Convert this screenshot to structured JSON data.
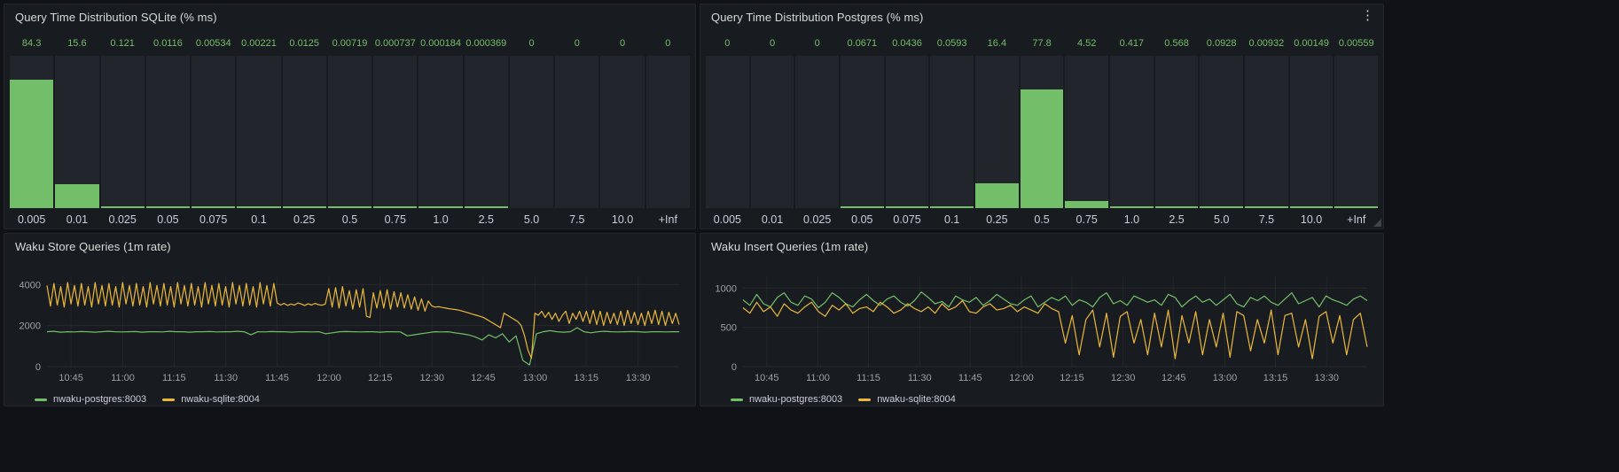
{
  "colors": {
    "green": "#73bf69",
    "yellow": "#eab839",
    "panel_bg": "#181b1f",
    "page_bg": "#111217"
  },
  "icons": {
    "panel_menu": "⋮"
  },
  "panels": {
    "hist_sqlite": {
      "title": "Query Time Distribution SQLite (% ms)",
      "chart": {
        "type": "bar",
        "categories": [
          "0.005",
          "0.01",
          "0.025",
          "0.05",
          "0.075",
          "0.1",
          "0.25",
          "0.5",
          "0.75",
          "1.0",
          "2.5",
          "5.0",
          "7.5",
          "10.0",
          "+Inf"
        ],
        "values": [
          84.3,
          15.6,
          0.121,
          0.0116,
          0.00534,
          0.00221,
          0.0125,
          0.00719,
          0.000737,
          0.000184,
          0.000369,
          0,
          0,
          0,
          0
        ],
        "value_labels": [
          "84.3",
          "15.6",
          "0.121",
          "0.0116",
          "0.00534",
          "0.00221",
          "0.0125",
          "0.00719",
          "0.000737",
          "0.000184",
          "0.000369",
          "0",
          "0",
          "0",
          "0"
        ],
        "ylim": [
          0,
          100
        ]
      }
    },
    "hist_postgres": {
      "title": "Query Time Distribution Postgres (% ms)",
      "chart": {
        "type": "bar",
        "categories": [
          "0.005",
          "0.01",
          "0.025",
          "0.05",
          "0.075",
          "0.1",
          "0.25",
          "0.5",
          "0.75",
          "1.0",
          "2.5",
          "5.0",
          "7.5",
          "10.0",
          "+Inf"
        ],
        "values": [
          0,
          0,
          0,
          0.0671,
          0.0436,
          0.0593,
          16.4,
          77.8,
          4.52,
          0.417,
          0.568,
          0.0928,
          0.00932,
          0.00149,
          0.00559
        ],
        "value_labels": [
          "0",
          "0",
          "0",
          "0.0671",
          "0.0436",
          "0.0593",
          "16.4",
          "77.8",
          "4.52",
          "0.417",
          "0.568",
          "0.0928",
          "0.00932",
          "0.00149",
          "0.00559"
        ],
        "ylim": [
          0,
          100
        ]
      }
    },
    "store": {
      "title": "Waku Store Queries (1m rate)",
      "chart": {
        "type": "line",
        "x_ticks": [
          {
            "label": "10:45",
            "pos": 0.038
          },
          {
            "label": "11:00",
            "pos": 0.12
          },
          {
            "label": "11:15",
            "pos": 0.201
          },
          {
            "label": "11:30",
            "pos": 0.283
          },
          {
            "label": "11:45",
            "pos": 0.364
          },
          {
            "label": "12:00",
            "pos": 0.446
          },
          {
            "label": "12:15",
            "pos": 0.527
          },
          {
            "label": "12:30",
            "pos": 0.609
          },
          {
            "label": "12:45",
            "pos": 0.69
          },
          {
            "label": "13:00",
            "pos": 0.772
          },
          {
            "label": "13:15",
            "pos": 0.853
          },
          {
            "label": "13:30",
            "pos": 0.935
          }
        ],
        "y_ticks": [
          0,
          2000,
          4000
        ],
        "ymax": 4400,
        "series": [
          {
            "name": "nwaku-postgres:8003",
            "color": "#73bf69",
            "values": [
              1700,
              1720,
              1680,
              1700,
              1690,
              1710,
              1700,
              1680,
              1700,
              1720,
              1700,
              1690,
              1700,
              1710,
              1680,
              1700,
              1700,
              1690,
              1720,
              1700,
              1700,
              1680,
              1700,
              1700,
              1710,
              1690,
              1700,
              1700,
              1720,
              1700,
              1550,
              1700,
              1690,
              1710,
              1700,
              1700,
              1680,
              1700,
              1700,
              1690,
              1700,
              1600,
              1650,
              1700,
              1710,
              1700,
              1690,
              1700,
              1700,
              1680,
              1700,
              1700,
              1690,
              1500,
              1550,
              1600,
              1650,
              1700,
              1690,
              1700,
              1650,
              1600,
              1550,
              1450,
              1300,
              1550,
              1400,
              1600,
              1200,
              1500,
              300,
              80,
              1600,
              1700,
              1750,
              1700,
              1680,
              1700,
              1900,
              1700,
              1650,
              1700,
              1720,
              1700,
              1690,
              1700,
              1710,
              1700,
              1680,
              1700,
              1700,
              1690,
              1700,
              1700
            ]
          },
          {
            "name": "nwaku-sqlite:8004",
            "color": "#eab839",
            "values": [
              3950,
              2950,
              4050,
              3000,
              3900,
              2900,
              4100,
              3050,
              3950,
              2950,
              4050,
              3000,
              3900,
              2900,
              4100,
              3050,
              3950,
              2950,
              4050,
              3000,
              3900,
              2900,
              4100,
              3050,
              3950,
              2950,
              4050,
              3000,
              3900,
              2900,
              4100,
              3050,
              3950,
              2950,
              4050,
              3000,
              3900,
              2900,
              4100,
              3050,
              3950,
              2950,
              4050,
              3000,
              3900,
              2900,
              4100,
              3050,
              3950,
              2950,
              4050,
              3000,
              3900,
              2900,
              4100,
              3050,
              3950,
              2950,
              4050,
              3000,
              3900,
              2900,
              4100,
              3050,
              3950,
              2950,
              4050,
              3100,
              3000,
              3080,
              2980,
              3050,
              3000,
              3100,
              3050,
              2980,
              3060,
              3000,
              3080,
              3020,
              2990,
              3050,
              3800,
              2900,
              3850,
              2850,
              3900,
              2950,
              3700,
              2800,
              3750,
              2900,
              3800,
              2450,
              2400,
              3600,
              2850,
              3700,
              2850,
              3750,
              2800,
              3650,
              2900,
              3600,
              2850,
              3500,
              2800,
              3400,
              2750,
              3300,
              2700,
              3200,
              2950,
              2900,
              2920,
              2880,
              2850,
              2820,
              2800,
              2780,
              2750,
              2700,
              2650,
              2600,
              2550,
              2500,
              2450,
              2400,
              2300,
              2200,
              2100,
              2000,
              1900,
              2600,
              2500,
              2400,
              2300,
              2200,
              2000,
              1500,
              800,
              400,
              2600,
              2500,
              2700,
              2400,
              2650,
              2300,
              2600,
              2200,
              2500,
              2700,
              2100,
              2600,
              2300,
              2700,
              2200,
              2700,
              2100,
              2750,
              2050,
              2700,
              2000,
              2650,
              2100,
              2600,
              2050,
              2700,
              2000,
              2750,
              2100,
              2650,
              2050,
              2600,
              2000,
              2700,
              2100,
              2750,
              2050,
              2700,
              2000,
              2650,
              2100,
              2600,
              2050
            ]
          }
        ]
      }
    },
    "insert": {
      "title": "Waku Insert Queries (1m rate)",
      "chart": {
        "type": "line",
        "x_ticks": [
          {
            "label": "10:45",
            "pos": 0.038
          },
          {
            "label": "11:00",
            "pos": 0.12
          },
          {
            "label": "11:15",
            "pos": 0.201
          },
          {
            "label": "11:30",
            "pos": 0.283
          },
          {
            "label": "11:45",
            "pos": 0.364
          },
          {
            "label": "12:00",
            "pos": 0.446
          },
          {
            "label": "12:15",
            "pos": 0.527
          },
          {
            "label": "12:30",
            "pos": 0.609
          },
          {
            "label": "12:45",
            "pos": 0.69
          },
          {
            "label": "13:00",
            "pos": 0.772
          },
          {
            "label": "13:15",
            "pos": 0.853
          },
          {
            "label": "13:30",
            "pos": 0.935
          }
        ],
        "y_ticks": [
          0,
          500,
          1000
        ],
        "ymax": 1150,
        "series": [
          {
            "name": "nwaku-postgres:8003",
            "color": "#73bf69",
            "values": [
              850,
              780,
              920,
              800,
              760,
              880,
              940,
              820,
              780,
              900,
              860,
              750,
              820,
              940,
              880,
              800,
              760,
              850,
              920,
              840,
              780,
              860,
              900,
              820,
              770,
              840,
              950,
              880,
              800,
              830,
              760,
              900,
              850,
              820,
              880,
              780,
              840,
              920,
              860,
              800,
              780,
              850,
              900,
              760,
              820,
              880,
              840,
              900,
              780,
              850,
              820,
              760,
              880,
              940,
              800,
              840,
              780,
              900,
              860,
              820,
              850,
              780,
              920,
              880,
              760,
              840,
              900,
              820,
              860,
              780,
              850,
              920,
              800,
              760,
              880,
              840,
              900,
              820,
              780,
              860,
              940,
              800,
              840,
              880,
              760,
              900,
              850,
              820,
              780,
              860,
              900,
              840
            ]
          },
          {
            "name": "nwaku-sqlite:8004",
            "color": "#eab839",
            "values": [
              750,
              680,
              820,
              700,
              760,
              640,
              800,
              720,
              680,
              760,
              820,
              700,
              640,
              780,
              720,
              800,
              680,
              740,
              760,
              700,
              820,
              760,
              680,
              720,
              800,
              740,
              700,
              760,
              680,
              800,
              720,
              760,
              840,
              700,
              680,
              760,
              800,
              720,
              740,
              780,
              700,
              760,
              720,
              680,
              800,
              740,
              700,
              300,
              650,
              150,
              600,
              720,
              250,
              680,
              120,
              640,
              700,
              300,
              600,
              150,
              680,
              250,
              720,
              100,
              650,
              300,
              700,
              150,
              600,
              250,
              680,
              120,
              700,
              650,
              200,
              600,
              300,
              720,
              150,
              650,
              680,
              250,
              600,
              100,
              640,
              700,
              300,
              650,
              150,
              600,
              680,
              250
            ]
          }
        ]
      }
    }
  }
}
